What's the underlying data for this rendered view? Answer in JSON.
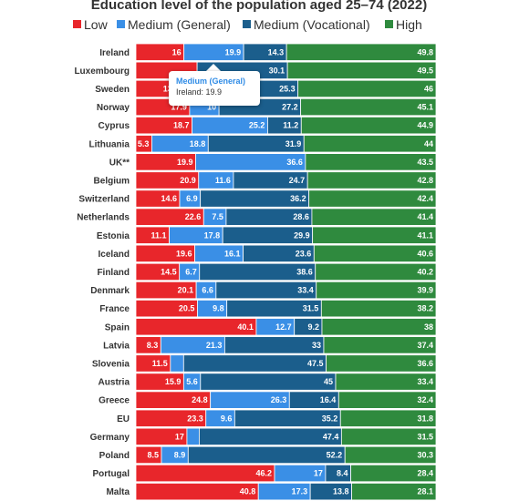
{
  "chart_data": {
    "type": "bar",
    "orientation": "horizontal",
    "stacked": true,
    "normalized": true,
    "title": "Education level of the population aged 25–74 (2022)",
    "legend_position": "top",
    "grid": false,
    "categories": [
      "Ireland",
      "Luxembourg",
      "Sweden",
      "Norway",
      "Cyprus",
      "Lithuania",
      "UK**",
      "Belgium",
      "Switzerland",
      "Netherlands",
      "Estonia",
      "Iceland",
      "Finland",
      "Denmark",
      "France",
      "Spain",
      "Latvia",
      "Slovenia",
      "Austria",
      "Greece",
      "EU",
      "Germany",
      "Poland",
      "Portugal",
      "Malta"
    ],
    "series": [
      {
        "name": "Low",
        "color": "#e8262b",
        "values": [
          16,
          20.4,
          13,
          17.9,
          18.7,
          5.3,
          19.9,
          20.9,
          14.6,
          22.6,
          11.1,
          19.6,
          14.5,
          20.1,
          20.5,
          40.1,
          8.3,
          11.5,
          15.9,
          24.8,
          23.3,
          17,
          8.5,
          46.2,
          40.8
        ]
      },
      {
        "name": "Medium (General)",
        "color": "#3a8fe6",
        "values": [
          19.9,
          0,
          15.7,
          9.8,
          25.2,
          18.8,
          36.6,
          11.6,
          6.9,
          7.5,
          17.8,
          16.1,
          6.7,
          6.6,
          9.8,
          12.7,
          21.3,
          4.4,
          5.6,
          26.3,
          9.6,
          4.1,
          8.9,
          17,
          17.3
        ]
      },
      {
        "name": "Medium (Vocational)",
        "color": "#1b5e8c",
        "values": [
          14.3,
          30.1,
          25.3,
          27.2,
          11.2,
          31.9,
          0,
          24.7,
          36.2,
          28.6,
          29.9,
          23.6,
          38.6,
          33.4,
          31.5,
          9.2,
          33,
          47.5,
          45,
          16.4,
          35.2,
          47.4,
          52.2,
          8.4,
          13.8
        ]
      },
      {
        "name": "High",
        "color": "#2f8a3e",
        "values": [
          49.8,
          49.5,
          46,
          45.1,
          44.9,
          44,
          43.5,
          42.8,
          42.4,
          41.4,
          41.1,
          40.6,
          40.2,
          39.9,
          38.2,
          38,
          37.4,
          36.6,
          33.4,
          32.4,
          31.8,
          31.5,
          30.3,
          28.4,
          28.1
        ]
      }
    ],
    "labels": {
      "Low": [
        "16",
        "",
        "13",
        "17.9",
        "18.7",
        "5.3",
        "19.9",
        "20.9",
        "14.6",
        "22.6",
        "11.1",
        "19.6",
        "14.5",
        "20.1",
        "20.5",
        "40.1",
        "8.3",
        "11.5",
        "15.9",
        "24.8",
        "23.3",
        "17",
        "8.5",
        "46.2",
        "40.8"
      ],
      "Medium (General)": [
        "19.9",
        "",
        "",
        "10",
        "25.2",
        "18.8",
        "36.6",
        "11.6",
        "6.9",
        "7.5",
        "17.8",
        "16.1",
        "6.7",
        "6.6",
        "9.8",
        "12.7",
        "21.3",
        "",
        "5.6",
        "26.3",
        "9.6",
        "",
        "8.9",
        "17",
        "17.3"
      ],
      "Medium (Vocational)": [
        "14.3",
        "30.1",
        "25.3",
        "27.2",
        "11.2",
        "31.9",
        "",
        "24.7",
        "36.2",
        "28.6",
        "29.9",
        "23.6",
        "38.6",
        "33.4",
        "31.5",
        "9.2",
        "33",
        "47.5",
        "45",
        "16.4",
        "35.2",
        "47.4",
        "52.2",
        "8.4",
        "13.8"
      ],
      "High": [
        "49.8",
        "49.5",
        "46",
        "45.1",
        "44.9",
        "44",
        "43.5",
        "42.8",
        "42.4",
        "41.4",
        "41.1",
        "40.6",
        "40.2",
        "39.9",
        "38.2",
        "38",
        "37.4",
        "36.6",
        "33.4",
        "32.4",
        "31.8",
        "31.5",
        "30.3",
        "28.4",
        "28.1"
      ]
    }
  },
  "tooltip": {
    "title": "Medium (General)",
    "body": "Ireland: 19.9"
  }
}
